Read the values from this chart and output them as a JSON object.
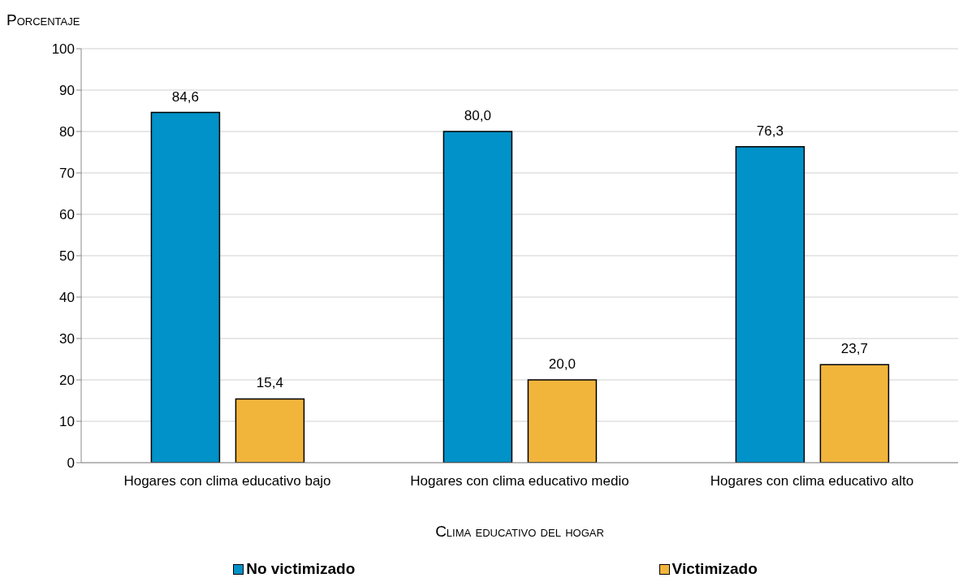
{
  "chart_data": {
    "type": "bar",
    "ylabel": "Porcentaje",
    "xlabel": "Clima educativo del hogar",
    "categories": [
      "Hogares con clima educativo bajo",
      "Hogares con clima educativo medio",
      "Hogares con clima educativo alto"
    ],
    "series": [
      {
        "name": "No victimizado",
        "color": "#0092c8",
        "values": [
          84.6,
          80.0,
          76.3
        ],
        "value_labels": [
          "84,6",
          "80,0",
          "76,3"
        ]
      },
      {
        "name": "Victimizado",
        "color": "#f2b53c",
        "values": [
          15.4,
          20.0,
          23.7
        ],
        "value_labels": [
          "15,4",
          "20,0",
          "23,7"
        ]
      }
    ],
    "ylim": [
      0,
      100
    ],
    "yticks": [
      0,
      10,
      20,
      30,
      40,
      50,
      60,
      70,
      80,
      90,
      100
    ],
    "grid": "y",
    "legend": "bottom"
  }
}
